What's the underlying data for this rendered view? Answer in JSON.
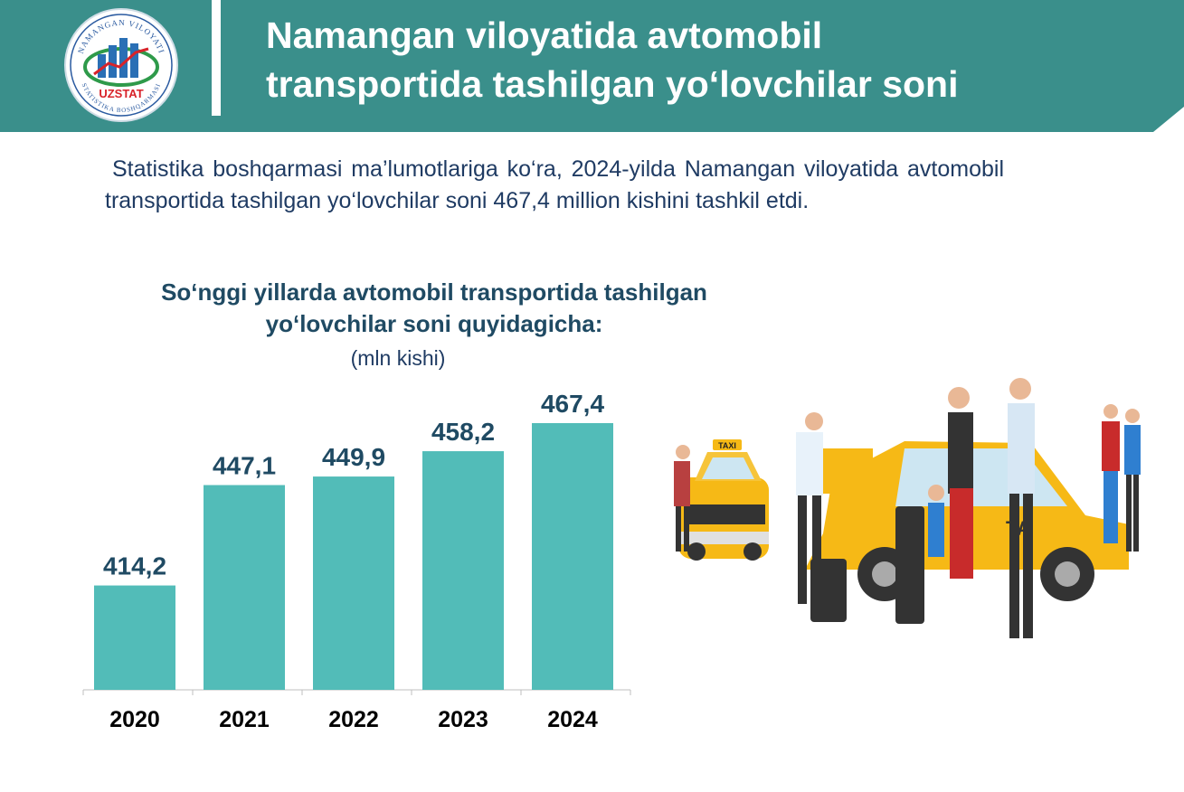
{
  "header": {
    "title_line1": "Namangan viloyatida avtomobil",
    "title_line2": "transportida tashilgan yo‘lovchilar soni",
    "bg_color": "#3a8f8b"
  },
  "logo": {
    "top_text": "NAMANGAN VILOYATI",
    "brand": "UZSTAT",
    "bottom_text": "STATISTIKA BOSHQARMASI"
  },
  "intro_text": "Statistika boshqarmasi ma’lumotlariga ko‘ra, 2024-yilda Namangan viloyatida avtomobil transportida tashilgan yo‘lovchilar soni 467,4 million kishini tashkil etdi.",
  "chart_data": {
    "type": "bar",
    "title_line1": "So‘nggi yillarda avtomobil transportida tashilgan",
    "title_line2": "yo‘lovchilar soni quyidagicha:",
    "unit": "(mln kishi)",
    "categories": [
      "2020",
      "2021",
      "2022",
      "2023",
      "2024"
    ],
    "values": [
      414.2,
      447.1,
      449.9,
      458.2,
      467.4
    ],
    "labels": [
      "414,2",
      "447,1",
      "449,9",
      "458,2",
      "467,4"
    ],
    "bar_color": "#52bcb8",
    "label_color": "#1f4a63",
    "grid": false,
    "legend": "none"
  },
  "illustration": {
    "taxi_sign": "TAXI",
    "taxi_side_text": "TA"
  }
}
